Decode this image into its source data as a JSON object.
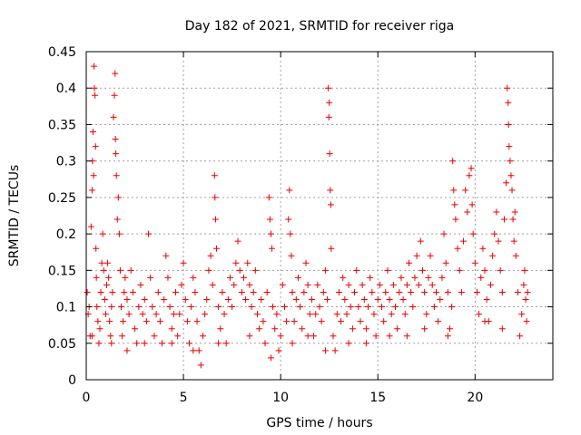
{
  "chart_data": {
    "type": "scatter",
    "title": "Day 182 of 2021, SRMTID for receiver riga",
    "xlabel": "GPS time / hours",
    "ylabel": "SRMTID / TECUs",
    "xlim": [
      0,
      24
    ],
    "ylim": [
      0,
      0.45
    ],
    "x_ticks": [
      0,
      5,
      10,
      15,
      20
    ],
    "x_tick_labels": [
      "0",
      "5",
      "10",
      "15",
      "20"
    ],
    "y_ticks": [
      0,
      0.05,
      0.1,
      0.15,
      0.2,
      0.25,
      0.3,
      0.35,
      0.4,
      0.45
    ],
    "y_tick_labels": [
      "0",
      "0.05",
      "0.1",
      "0.15",
      "0.2",
      "0.25",
      "0.3",
      "0.35",
      "0.4",
      "0.45"
    ],
    "grid": true,
    "marker": "plus",
    "color": "#ee0000",
    "series": [
      {
        "name": "SRMTID",
        "points": [
          [
            0.05,
            0.12
          ],
          [
            0.1,
            0.09
          ],
          [
            0.15,
            0.1
          ],
          [
            0.2,
            0.06
          ],
          [
            0.25,
            0.21
          ],
          [
            0.3,
            0.26
          ],
          [
            0.32,
            0.3
          ],
          [
            0.35,
            0.34
          ],
          [
            0.38,
            0.28
          ],
          [
            0.4,
            0.43
          ],
          [
            0.42,
            0.4
          ],
          [
            0.45,
            0.39
          ],
          [
            0.48,
            0.32
          ],
          [
            0.5,
            0.18
          ],
          [
            0.52,
            0.14
          ],
          [
            0.55,
            0.1
          ],
          [
            0.6,
            0.08
          ],
          [
            0.65,
            0.05
          ],
          [
            0.7,
            0.07
          ],
          [
            0.75,
            0.12
          ],
          [
            0.8,
            0.16
          ],
          [
            0.85,
            0.2
          ],
          [
            0.9,
            0.15
          ],
          [
            0.95,
            0.11
          ],
          [
            1.0,
            0.09
          ],
          [
            1.05,
            0.13
          ],
          [
            1.1,
            0.16
          ],
          [
            1.15,
            0.14
          ],
          [
            1.2,
            0.08
          ],
          [
            1.25,
            0.06
          ],
          [
            1.3,
            0.1
          ],
          [
            1.35,
            0.12
          ],
          [
            1.4,
            0.36
          ],
          [
            1.45,
            0.39
          ],
          [
            1.48,
            0.42
          ],
          [
            1.5,
            0.33
          ],
          [
            1.52,
            0.31
          ],
          [
            1.55,
            0.28
          ],
          [
            1.6,
            0.22
          ],
          [
            1.65,
            0.25
          ],
          [
            1.7,
            0.2
          ],
          [
            1.75,
            0.15
          ],
          [
            1.8,
            0.1
          ],
          [
            1.85,
            0.06
          ],
          [
            1.9,
            0.08
          ],
          [
            1.95,
            0.12
          ],
          [
            2.0,
            0.14
          ],
          [
            2.1,
            0.11
          ],
          [
            2.2,
            0.09
          ],
          [
            2.3,
            0.15
          ],
          [
            2.4,
            0.12
          ],
          [
            2.5,
            0.07
          ],
          [
            2.6,
            0.05
          ],
          [
            2.7,
            0.1
          ],
          [
            2.8,
            0.13
          ],
          [
            2.9,
            0.09
          ],
          [
            3.0,
            0.11
          ],
          [
            3.1,
            0.08
          ],
          [
            3.2,
            0.2
          ],
          [
            3.3,
            0.14
          ],
          [
            3.4,
            0.1
          ],
          [
            3.5,
            0.06
          ],
          [
            3.6,
            0.09
          ],
          [
            3.7,
            0.12
          ],
          [
            3.8,
            0.08
          ],
          [
            3.9,
            0.05
          ],
          [
            4.0,
            0.11
          ],
          [
            4.1,
            0.17
          ],
          [
            4.2,
            0.14
          ],
          [
            4.3,
            0.1
          ],
          [
            4.4,
            0.07
          ],
          [
            4.5,
            0.09
          ],
          [
            4.6,
            0.12
          ],
          [
            4.7,
            0.06
          ],
          [
            4.8,
            0.09
          ],
          [
            4.9,
            0.13
          ],
          [
            5.0,
            0.16
          ],
          [
            5.1,
            0.11
          ],
          [
            5.2,
            0.08
          ],
          [
            5.3,
            0.05
          ],
          [
            5.4,
            0.1
          ],
          [
            5.5,
            0.14
          ],
          [
            5.6,
            0.12
          ],
          [
            5.7,
            0.08
          ],
          [
            5.8,
            0.04
          ],
          [
            5.9,
            0.02
          ],
          [
            6.0,
            0.06
          ],
          [
            6.1,
            0.09
          ],
          [
            6.2,
            0.11
          ],
          [
            6.3,
            0.15
          ],
          [
            6.4,
            0.17
          ],
          [
            6.5,
            0.13
          ],
          [
            6.6,
            0.28
          ],
          [
            6.62,
            0.25
          ],
          [
            6.65,
            0.22
          ],
          [
            6.7,
            0.18
          ],
          [
            6.8,
            0.1
          ],
          [
            6.9,
            0.07
          ],
          [
            7.0,
            0.12
          ],
          [
            7.1,
            0.09
          ],
          [
            7.2,
            0.05
          ],
          [
            7.3,
            0.11
          ],
          [
            7.4,
            0.14
          ],
          [
            7.5,
            0.1
          ],
          [
            7.6,
            0.13
          ],
          [
            7.7,
            0.16
          ],
          [
            7.8,
            0.19
          ],
          [
            7.9,
            0.15
          ],
          [
            8.0,
            0.12
          ],
          [
            8.1,
            0.14
          ],
          [
            8.2,
            0.11
          ],
          [
            8.3,
            0.16
          ],
          [
            8.4,
            0.13
          ],
          [
            8.5,
            0.1
          ],
          [
            8.6,
            0.12
          ],
          [
            8.7,
            0.15
          ],
          [
            8.8,
            0.09
          ],
          [
            8.9,
            0.07
          ],
          [
            9.0,
            0.11
          ],
          [
            9.1,
            0.08
          ],
          [
            9.2,
            0.05
          ],
          [
            9.3,
            0.12
          ],
          [
            9.4,
            0.25
          ],
          [
            9.45,
            0.22
          ],
          [
            9.5,
            0.2
          ],
          [
            9.55,
            0.18
          ],
          [
            9.6,
            0.1
          ],
          [
            9.7,
            0.07
          ],
          [
            9.8,
            0.09
          ],
          [
            9.9,
            0.04
          ],
          [
            10.0,
            0.06
          ],
          [
            10.1,
            0.13
          ],
          [
            10.2,
            0.1
          ],
          [
            10.3,
            0.08
          ],
          [
            10.4,
            0.22
          ],
          [
            10.45,
            0.26
          ],
          [
            10.5,
            0.2
          ],
          [
            10.55,
            0.17
          ],
          [
            10.6,
            0.12
          ],
          [
            10.7,
            0.08
          ],
          [
            10.8,
            0.11
          ],
          [
            10.9,
            0.14
          ],
          [
            11.0,
            0.1
          ],
          [
            11.1,
            0.07
          ],
          [
            11.2,
            0.12
          ],
          [
            11.3,
            0.16
          ],
          [
            11.4,
            0.13
          ],
          [
            11.5,
            0.09
          ],
          [
            11.6,
            0.11
          ],
          [
            11.7,
            0.06
          ],
          [
            11.8,
            0.09
          ],
          [
            11.9,
            0.13
          ],
          [
            12.0,
            0.1
          ],
          [
            12.1,
            0.08
          ],
          [
            12.2,
            0.12
          ],
          [
            12.3,
            0.15
          ],
          [
            12.4,
            0.11
          ],
          [
            12.45,
            0.4
          ],
          [
            12.48,
            0.36
          ],
          [
            12.5,
            0.38
          ],
          [
            12.52,
            0.31
          ],
          [
            12.55,
            0.26
          ],
          [
            12.58,
            0.24
          ],
          [
            12.6,
            0.18
          ],
          [
            12.7,
            0.06
          ],
          [
            12.8,
            0.04
          ],
          [
            12.9,
            0.09
          ],
          [
            13.0,
            0.12
          ],
          [
            13.1,
            0.08
          ],
          [
            13.2,
            0.14
          ],
          [
            13.3,
            0.11
          ],
          [
            13.4,
            0.09
          ],
          [
            13.5,
            0.13
          ],
          [
            13.6,
            0.1
          ],
          [
            13.7,
            0.07
          ],
          [
            13.8,
            0.12
          ],
          [
            13.9,
            0.15
          ],
          [
            14.0,
            0.1
          ],
          [
            14.1,
            0.08
          ],
          [
            14.2,
            0.13
          ],
          [
            14.3,
            0.11
          ],
          [
            14.4,
            0.07
          ],
          [
            14.5,
            0.1
          ],
          [
            14.6,
            0.14
          ],
          [
            14.7,
            0.12
          ],
          [
            14.8,
            0.09
          ],
          [
            14.9,
            0.06
          ],
          [
            15.0,
            0.11
          ],
          [
            15.1,
            0.13
          ],
          [
            15.2,
            0.1
          ],
          [
            15.3,
            0.08
          ],
          [
            15.4,
            0.12
          ],
          [
            15.5,
            0.15
          ],
          [
            15.6,
            0.11
          ],
          [
            15.7,
            0.09
          ],
          [
            15.8,
            0.13
          ],
          [
            15.9,
            0.1
          ],
          [
            16.0,
            0.07
          ],
          [
            16.1,
            0.12
          ],
          [
            16.2,
            0.14
          ],
          [
            16.3,
            0.11
          ],
          [
            16.4,
            0.09
          ],
          [
            16.5,
            0.13
          ],
          [
            16.6,
            0.16
          ],
          [
            16.7,
            0.12
          ],
          [
            16.8,
            0.1
          ],
          [
            16.9,
            0.14
          ],
          [
            17.0,
            0.17
          ],
          [
            17.1,
            0.13
          ],
          [
            17.2,
            0.19
          ],
          [
            17.3,
            0.15
          ],
          [
            17.4,
            0.12
          ],
          [
            17.5,
            0.09
          ],
          [
            17.6,
            0.14
          ],
          [
            17.7,
            0.17
          ],
          [
            17.8,
            0.13
          ],
          [
            17.9,
            0.1
          ],
          [
            18.0,
            0.12
          ],
          [
            18.1,
            0.08
          ],
          [
            18.2,
            0.11
          ],
          [
            18.3,
            0.14
          ],
          [
            18.4,
            0.2
          ],
          [
            18.5,
            0.16
          ],
          [
            18.6,
            0.12
          ],
          [
            18.7,
            0.07
          ],
          [
            18.8,
            0.1
          ],
          [
            18.85,
            0.3
          ],
          [
            18.9,
            0.26
          ],
          [
            18.95,
            0.24
          ],
          [
            19.0,
            0.22
          ],
          [
            19.1,
            0.18
          ],
          [
            19.2,
            0.15
          ],
          [
            19.3,
            0.12
          ],
          [
            19.4,
            0.19
          ],
          [
            19.5,
            0.26
          ],
          [
            19.6,
            0.23
          ],
          [
            19.7,
            0.28
          ],
          [
            19.8,
            0.29
          ],
          [
            19.85,
            0.24
          ],
          [
            19.9,
            0.2
          ],
          [
            20.0,
            0.16
          ],
          [
            20.1,
            0.12
          ],
          [
            20.2,
            0.09
          ],
          [
            20.3,
            0.14
          ],
          [
            20.4,
            0.18
          ],
          [
            20.5,
            0.15
          ],
          [
            20.6,
            0.11
          ],
          [
            20.7,
            0.08
          ],
          [
            20.8,
            0.13
          ],
          [
            20.9,
            0.17
          ],
          [
            21.0,
            0.2
          ],
          [
            21.1,
            0.23
          ],
          [
            21.2,
            0.19
          ],
          [
            21.3,
            0.15
          ],
          [
            21.4,
            0.12
          ],
          [
            21.5,
            0.22
          ],
          [
            21.6,
            0.27
          ],
          [
            21.65,
            0.4
          ],
          [
            21.7,
            0.38
          ],
          [
            21.72,
            0.35
          ],
          [
            21.75,
            0.32
          ],
          [
            21.8,
            0.3
          ],
          [
            21.85,
            0.28
          ],
          [
            21.9,
            0.26
          ],
          [
            21.95,
            0.22
          ],
          [
            22.0,
            0.19
          ],
          [
            22.05,
            0.23
          ],
          [
            22.1,
            0.17
          ],
          [
            22.2,
            0.12
          ],
          [
            22.3,
            0.06
          ],
          [
            22.4,
            0.09
          ],
          [
            22.5,
            0.13
          ],
          [
            22.55,
            0.15
          ],
          [
            22.6,
            0.11
          ],
          [
            22.65,
            0.08
          ],
          [
            22.7,
            0.12
          ],
          [
            0.3,
            0.06
          ],
          [
            1.3,
            0.05
          ],
          [
            2.1,
            0.04
          ],
          [
            3.0,
            0.05
          ],
          [
            4.4,
            0.05
          ],
          [
            5.5,
            0.04
          ],
          [
            6.8,
            0.05
          ],
          [
            8.4,
            0.06
          ],
          [
            9.5,
            0.03
          ],
          [
            10.6,
            0.05
          ],
          [
            11.4,
            0.06
          ],
          [
            12.3,
            0.04
          ],
          [
            13.5,
            0.05
          ],
          [
            14.4,
            0.05
          ],
          [
            15.6,
            0.06
          ],
          [
            16.5,
            0.06
          ],
          [
            17.4,
            0.07
          ],
          [
            18.6,
            0.06
          ],
          [
            20.5,
            0.08
          ],
          [
            21.4,
            0.07
          ]
        ]
      }
    ]
  }
}
